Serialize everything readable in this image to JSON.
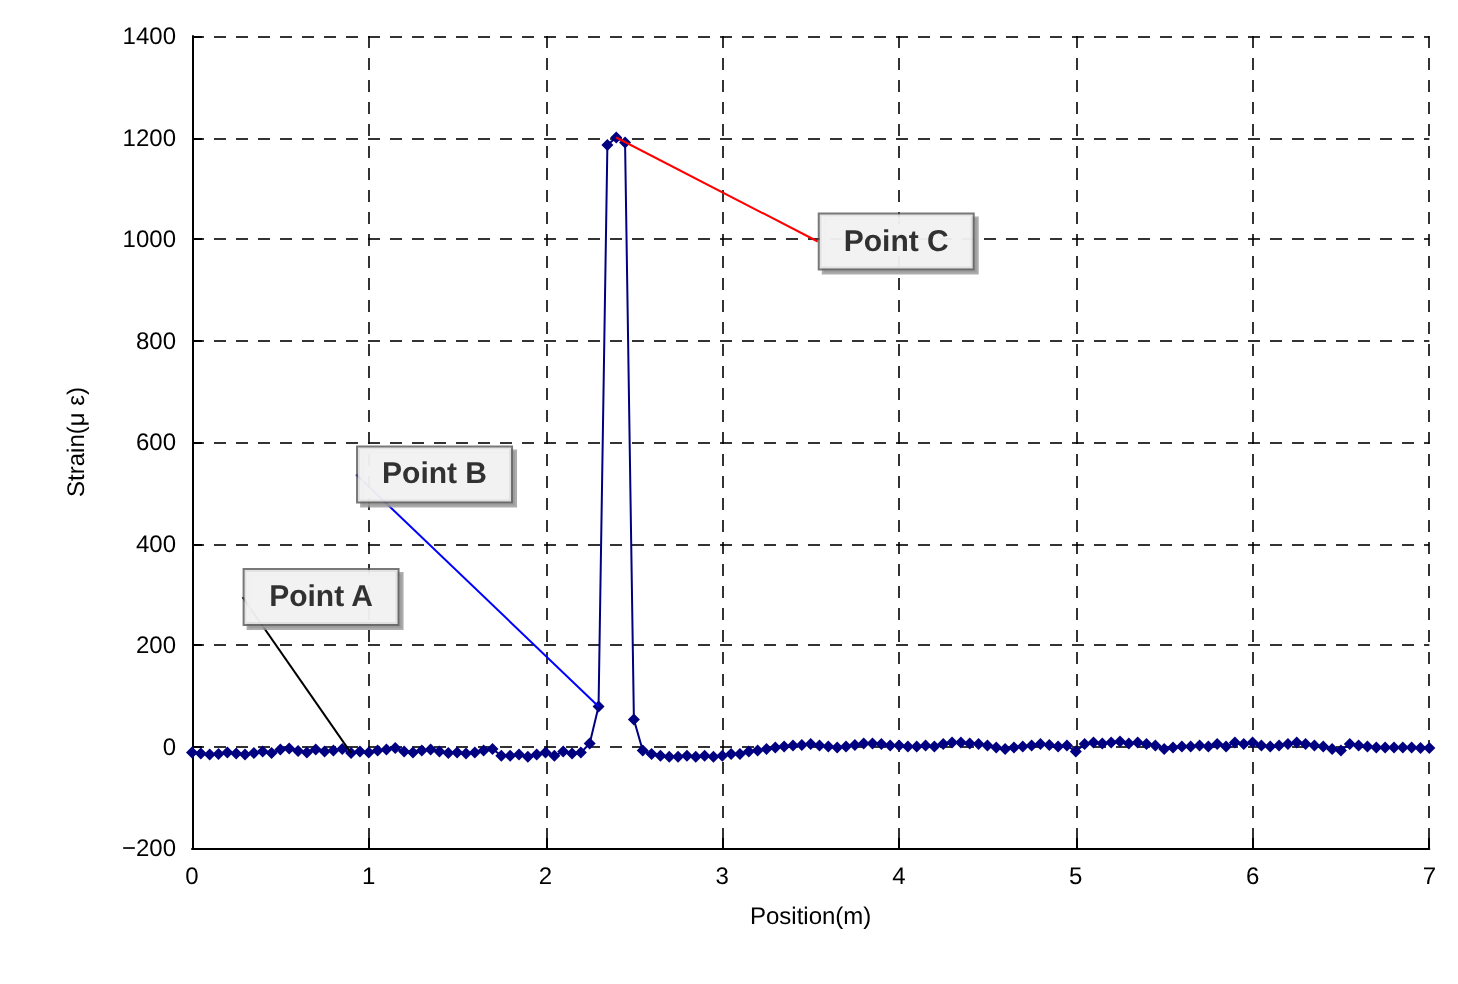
{
  "chart_data": {
    "type": "line",
    "xlabel": "Position(m)",
    "ylabel": "Strain(μ ε)",
    "x": [
      0,
      0.05,
      0.1,
      0.15,
      0.2,
      0.25,
      0.3,
      0.35,
      0.4,
      0.45,
      0.5,
      0.55,
      0.6,
      0.65,
      0.7,
      0.75,
      0.8,
      0.85,
      0.9,
      0.95,
      1,
      1.05,
      1.1,
      1.15,
      1.2,
      1.25,
      1.3,
      1.35,
      1.4,
      1.45,
      1.5,
      1.55,
      1.6,
      1.65,
      1.7,
      1.75,
      1.8,
      1.85,
      1.9,
      1.95,
      2,
      2.05,
      2.1,
      2.15,
      2.2,
      2.25,
      2.3,
      2.35,
      2.4,
      2.45,
      2.5,
      2.55,
      2.6,
      2.65,
      2.7,
      2.75,
      2.8,
      2.85,
      2.9,
      2.95,
      3,
      3.05,
      3.1,
      3.15,
      3.2,
      3.25,
      3.3,
      3.35,
      3.4,
      3.45,
      3.5,
      3.55,
      3.6,
      3.65,
      3.7,
      3.75,
      3.8,
      3.85,
      3.9,
      3.95,
      4,
      4.05,
      4.1,
      4.15,
      4.2,
      4.25,
      4.3,
      4.35,
      4.4,
      4.45,
      4.5,
      4.55,
      4.6,
      4.65,
      4.7,
      4.75,
      4.8,
      4.85,
      4.9,
      4.95,
      5,
      5.05,
      5.1,
      5.15,
      5.2,
      5.25,
      5.3,
      5.35,
      5.4,
      5.45,
      5.5,
      5.55,
      5.6,
      5.65,
      5.7,
      5.75,
      5.8,
      5.85,
      5.9,
      5.95,
      6,
      6.05,
      6.1,
      6.15,
      6.2,
      6.25,
      6.3,
      6.35,
      6.4,
      6.45,
      6.5,
      6.55,
      6.6,
      6.65,
      6.7,
      6.75,
      6.8,
      6.85,
      6.9,
      6.95,
      7
    ],
    "series": [
      {
        "color": "#000080",
        "values": [
          -12,
          -14,
          -16,
          -15,
          -12,
          -14,
          -16,
          -13,
          -10,
          -13,
          -6,
          -4,
          -9,
          -12,
          -6,
          -10,
          -8,
          -5,
          -13,
          -10,
          -12,
          -8,
          -6,
          -3,
          -10,
          -12,
          -8,
          -6,
          -10,
          -13,
          -12,
          -14,
          -12,
          -8,
          -5,
          -18,
          -18,
          -16,
          -20,
          -16,
          -12,
          -18,
          -10,
          -14,
          -12,
          6,
          79,
          1185,
          1200,
          1190,
          53,
          -8,
          -15,
          -18,
          -20,
          -20,
          -18,
          -20,
          -18,
          -20,
          -18,
          -15,
          -15,
          -10,
          -8,
          -5,
          -2,
          0,
          2,
          3,
          5,
          2,
          0,
          -2,
          0,
          3,
          6,
          6,
          5,
          2,
          2,
          0,
          0,
          2,
          0,
          5,
          8,
          8,
          6,
          5,
          2,
          -2,
          -5,
          -2,
          0,
          2,
          5,
          3,
          0,
          2,
          -10,
          5,
          8,
          6,
          8,
          10,
          6,
          8,
          5,
          2,
          -5,
          -2,
          0,
          0,
          2,
          0,
          5,
          0,
          8,
          5,
          8,
          2,
          0,
          2,
          5,
          8,
          5,
          2,
          0,
          -5,
          -8,
          5,
          2,
          0,
          -2,
          -2,
          -2,
          -2,
          -2,
          -3,
          -3
        ]
      }
    ],
    "xlim": [
      0,
      7
    ],
    "xticks": [
      0,
      1,
      2,
      3,
      4,
      5,
      6,
      7
    ],
    "ylim": [
      -200,
      1400
    ],
    "yticks": [
      {
        "value": -200,
        "label": "−200"
      },
      0,
      200,
      400,
      600,
      800,
      1000,
      1200,
      1400
    ],
    "grid": true,
    "marker": "diamond",
    "line_style": "solid",
    "annotations": [
      {
        "text": "Point A",
        "x": 0.9,
        "y": -13
      },
      {
        "text": "Point B",
        "x": 2.3,
        "y": 79
      },
      {
        "text": "Point C",
        "x": 2.4,
        "y": 1200
      }
    ]
  }
}
